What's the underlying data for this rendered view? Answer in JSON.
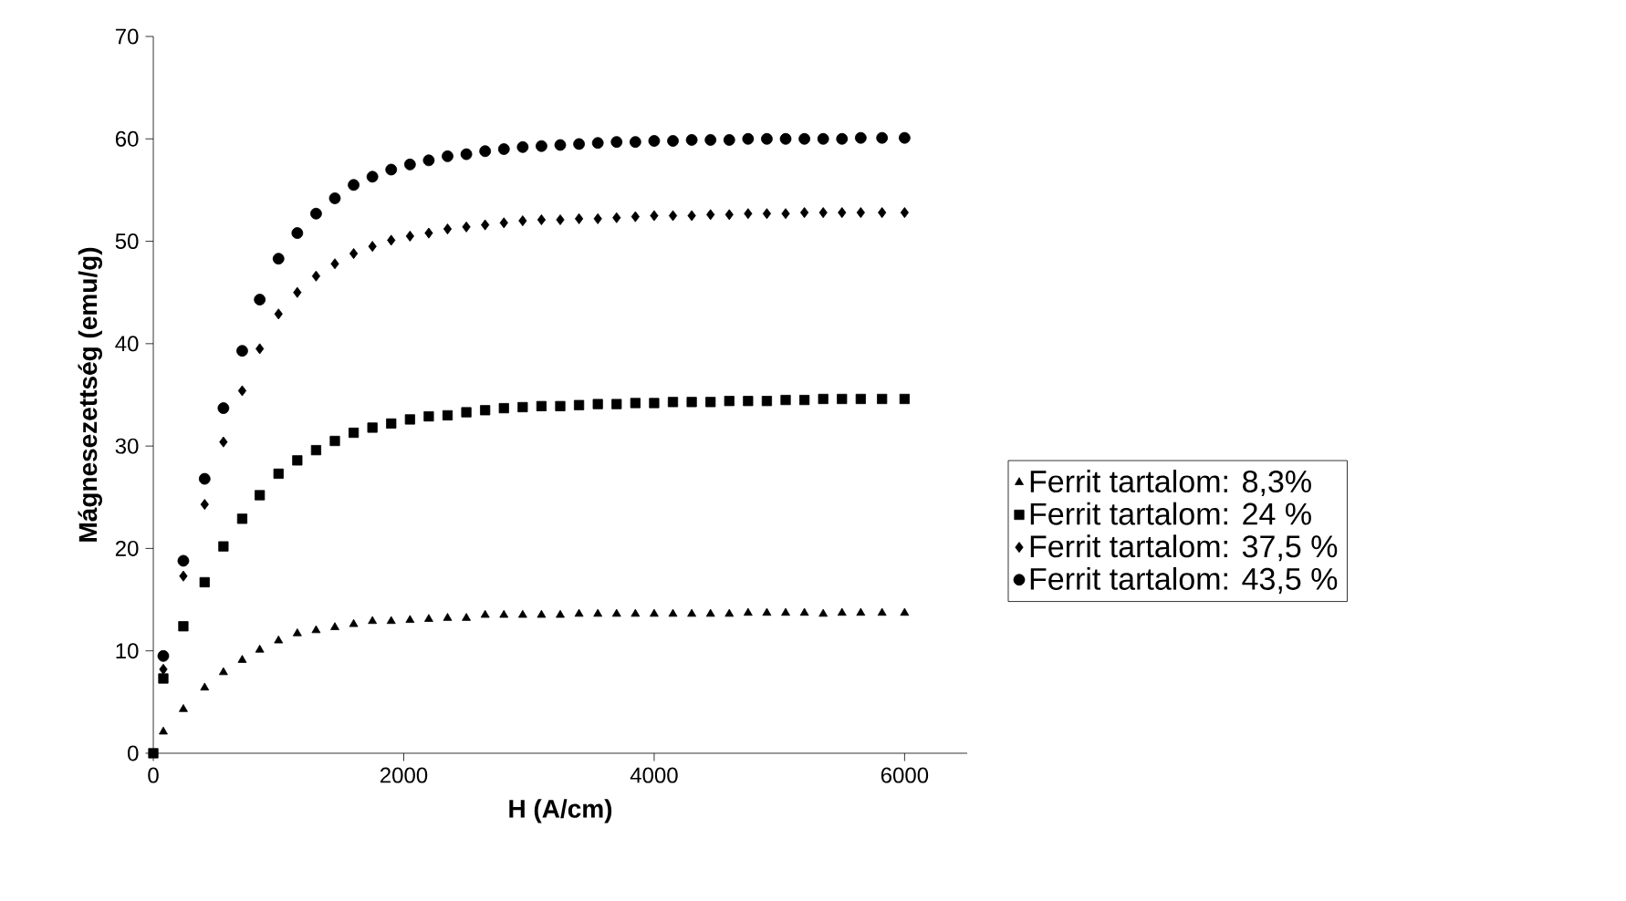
{
  "chart_data": {
    "type": "scatter",
    "xlabel": "H (A/cm)",
    "ylabel": "Mágnesezettség (emu/g)",
    "x": [
      0,
      80,
      240,
      410,
      560,
      710,
      850,
      1000,
      1150,
      1300,
      1450,
      1600,
      1750,
      1900,
      2050,
      2200,
      2350,
      2500,
      2650,
      2800,
      2950,
      3100,
      3250,
      3400,
      3550,
      3700,
      3850,
      4000,
      4150,
      4300,
      4450,
      4600,
      4750,
      4900,
      5050,
      5200,
      5350,
      5500,
      5650,
      5820,
      6000
    ],
    "xlim": [
      0,
      6500
    ],
    "xticks": [
      0,
      2000,
      4000,
      6000
    ],
    "ylim": [
      0,
      70
    ],
    "yticks": [
      0,
      10,
      20,
      30,
      40,
      50,
      60,
      70
    ],
    "grid": false,
    "legend": "right",
    "series": [
      {
        "name": "Ferrit tartalom: 8,3%",
        "color": "#000000",
        "marker": "triangle",
        "values": [
          null,
          2.1,
          4.3,
          6.4,
          7.9,
          9.1,
          10.1,
          11.0,
          11.7,
          12.0,
          12.3,
          12.6,
          12.9,
          12.9,
          13.0,
          13.1,
          13.2,
          13.2,
          13.5,
          13.5,
          13.5,
          13.5,
          13.5,
          13.6,
          13.6,
          13.6,
          13.6,
          13.6,
          13.6,
          13.6,
          13.6,
          13.6,
          13.7,
          13.7,
          13.7,
          13.7,
          13.6,
          13.7,
          13.7,
          13.7,
          13.7
        ]
      },
      {
        "name": "Ferrit tartalom: 24 %",
        "color": "#000000",
        "marker": "square",
        "values": [
          0,
          7.3,
          12.4,
          16.7,
          20.2,
          22.9,
          25.2,
          27.3,
          28.6,
          29.6,
          30.5,
          31.3,
          31.8,
          32.2,
          32.6,
          32.9,
          33.0,
          33.3,
          33.5,
          33.7,
          33.8,
          33.9,
          33.9,
          34.0,
          34.1,
          34.1,
          34.2,
          34.2,
          34.3,
          34.3,
          34.3,
          34.4,
          34.4,
          34.4,
          34.5,
          34.5,
          34.6,
          34.6,
          34.6,
          34.6,
          34.6
        ]
      },
      {
        "name": "Ferrit tartalom: 37,5 %",
        "color": "#000000",
        "marker": "diamond",
        "values": [
          null,
          8.2,
          17.3,
          24.3,
          30.4,
          35.4,
          39.5,
          42.9,
          45.0,
          46.6,
          47.8,
          48.8,
          49.5,
          50.1,
          50.5,
          50.8,
          51.2,
          51.4,
          51.6,
          51.8,
          52.0,
          52.1,
          52.1,
          52.2,
          52.2,
          52.3,
          52.4,
          52.5,
          52.5,
          52.5,
          52.6,
          52.6,
          52.7,
          52.7,
          52.7,
          52.8,
          52.8,
          52.8,
          52.8,
          52.8,
          52.8
        ]
      },
      {
        "name": "Ferrit tartalom: 43,5 %",
        "color": "#000000",
        "marker": "circle",
        "values": [
          null,
          9.5,
          18.8,
          26.8,
          33.7,
          39.3,
          44.3,
          48.3,
          50.8,
          52.7,
          54.2,
          55.5,
          56.3,
          57.0,
          57.5,
          57.9,
          58.3,
          58.5,
          58.8,
          59.0,
          59.2,
          59.3,
          59.4,
          59.5,
          59.6,
          59.7,
          59.7,
          59.8,
          59.8,
          59.9,
          59.9,
          59.9,
          60.0,
          60.0,
          60.0,
          60.0,
          60.0,
          60.0,
          60.1,
          60.1,
          60.1
        ]
      }
    ]
  }
}
